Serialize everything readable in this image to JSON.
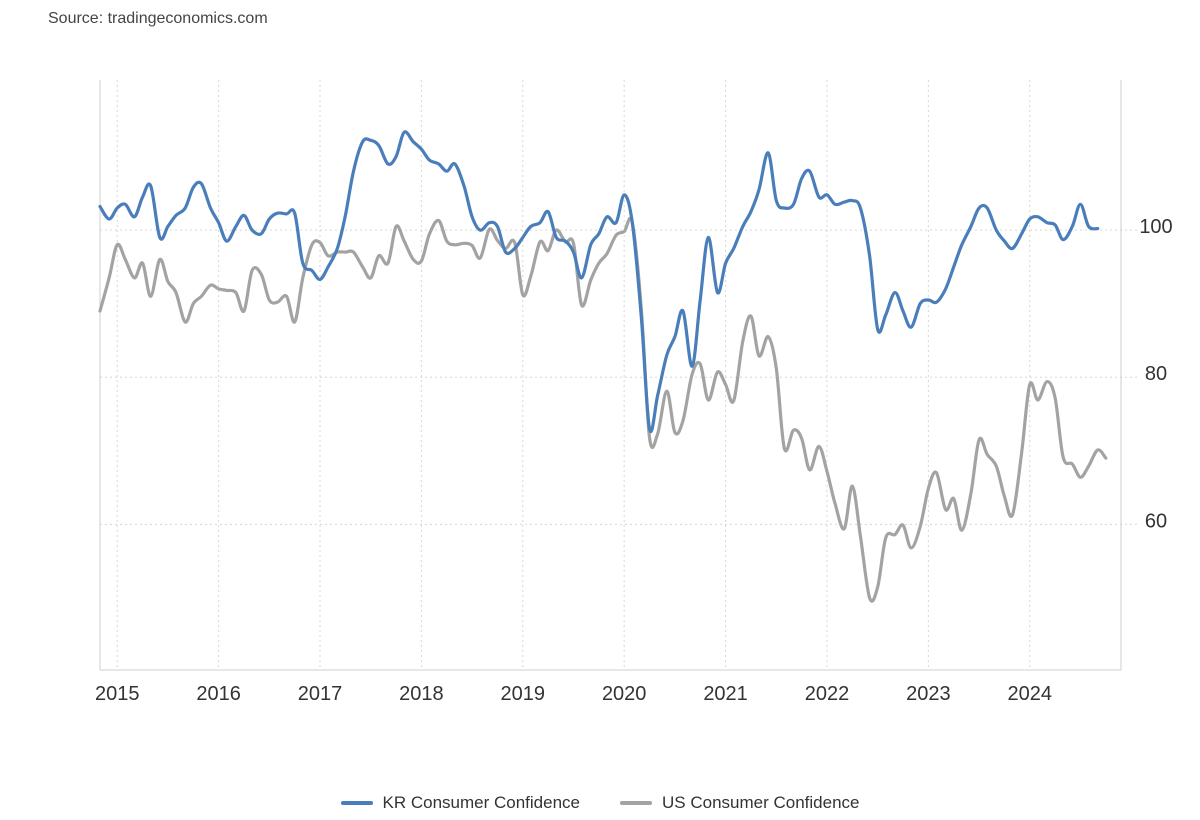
{
  "source_text": "Source: tradingeconomics.com",
  "chart_data": {
    "type": "line",
    "title": "",
    "xlabel": "",
    "ylabel": "",
    "x_ticks": [
      "2015",
      "2016",
      "2017",
      "2018",
      "2019",
      "2020",
      "2021",
      "2022",
      "2023",
      "2024"
    ],
    "y_ticks": [
      60,
      80,
      100
    ],
    "xlim": [
      2014.83,
      2024.9
    ],
    "ylim": [
      40.2,
      120.4
    ],
    "grid": true,
    "legend_position": "bottom-center",
    "series": [
      {
        "name": "KR Consumer Confidence",
        "color": "#4a7ebb",
        "points": [
          [
            2014.83,
            103.2
          ],
          [
            2014.92,
            101.5
          ],
          [
            2015.0,
            103.0
          ],
          [
            2015.08,
            103.5
          ],
          [
            2015.17,
            101.8
          ],
          [
            2015.25,
            104.5
          ],
          [
            2015.33,
            106.0
          ],
          [
            2015.42,
            99.0
          ],
          [
            2015.5,
            100.5
          ],
          [
            2015.58,
            102.0
          ],
          [
            2015.67,
            103.0
          ],
          [
            2015.75,
            105.8
          ],
          [
            2015.83,
            106.3
          ],
          [
            2015.92,
            103.0
          ],
          [
            2016.0,
            101.0
          ],
          [
            2016.08,
            98.5
          ],
          [
            2016.17,
            100.5
          ],
          [
            2016.25,
            102.0
          ],
          [
            2016.33,
            100.0
          ],
          [
            2016.42,
            99.5
          ],
          [
            2016.5,
            101.5
          ],
          [
            2016.58,
            102.3
          ],
          [
            2016.67,
            102.2
          ],
          [
            2016.75,
            102.3
          ],
          [
            2016.83,
            95.5
          ],
          [
            2016.92,
            94.5
          ],
          [
            2017.0,
            93.3
          ],
          [
            2017.08,
            95.0
          ],
          [
            2017.17,
            97.5
          ],
          [
            2017.25,
            102.0
          ],
          [
            2017.33,
            108.0
          ],
          [
            2017.42,
            112.0
          ],
          [
            2017.5,
            112.2
          ],
          [
            2017.58,
            111.5
          ],
          [
            2017.67,
            109.0
          ],
          [
            2017.75,
            110.0
          ],
          [
            2017.83,
            113.3
          ],
          [
            2017.92,
            112.0
          ],
          [
            2018.0,
            111.0
          ],
          [
            2018.08,
            109.5
          ],
          [
            2018.17,
            109.0
          ],
          [
            2018.25,
            108.0
          ],
          [
            2018.33,
            109.0
          ],
          [
            2018.42,
            106.0
          ],
          [
            2018.5,
            101.8
          ],
          [
            2018.58,
            100.0
          ],
          [
            2018.67,
            101.0
          ],
          [
            2018.75,
            100.5
          ],
          [
            2018.83,
            97.0
          ],
          [
            2018.92,
            97.5
          ],
          [
            2019.0,
            99.0
          ],
          [
            2019.08,
            100.5
          ],
          [
            2019.17,
            101.0
          ],
          [
            2019.25,
            102.5
          ],
          [
            2019.33,
            99.0
          ],
          [
            2019.42,
            98.5
          ],
          [
            2019.5,
            97.0
          ],
          [
            2019.58,
            93.5
          ],
          [
            2019.67,
            98.0
          ],
          [
            2019.75,
            99.5
          ],
          [
            2019.83,
            101.8
          ],
          [
            2019.92,
            101.0
          ],
          [
            2020.0,
            104.8
          ],
          [
            2020.08,
            101.0
          ],
          [
            2020.17,
            88.0
          ],
          [
            2020.25,
            73.0
          ],
          [
            2020.33,
            77.5
          ],
          [
            2020.42,
            83.0
          ],
          [
            2020.5,
            85.5
          ],
          [
            2020.58,
            89.0
          ],
          [
            2020.67,
            81.5
          ],
          [
            2020.75,
            90.5
          ],
          [
            2020.83,
            99.0
          ],
          [
            2020.92,
            91.5
          ],
          [
            2021.0,
            95.5
          ],
          [
            2021.08,
            97.5
          ],
          [
            2021.17,
            100.5
          ],
          [
            2021.25,
            102.5
          ],
          [
            2021.33,
            105.5
          ],
          [
            2021.42,
            110.5
          ],
          [
            2021.5,
            104.0
          ],
          [
            2021.58,
            103.0
          ],
          [
            2021.67,
            103.5
          ],
          [
            2021.75,
            107.0
          ],
          [
            2021.83,
            108.0
          ],
          [
            2021.92,
            104.5
          ],
          [
            2022.0,
            104.8
          ],
          [
            2022.08,
            103.5
          ],
          [
            2022.17,
            103.8
          ],
          [
            2022.25,
            104.0
          ],
          [
            2022.33,
            103.0
          ],
          [
            2022.42,
            96.5
          ],
          [
            2022.5,
            86.5
          ],
          [
            2022.58,
            88.5
          ],
          [
            2022.67,
            91.5
          ],
          [
            2022.75,
            89.0
          ],
          [
            2022.83,
            86.8
          ],
          [
            2022.92,
            90.0
          ],
          [
            2023.0,
            90.5
          ],
          [
            2023.08,
            90.2
          ],
          [
            2023.17,
            92.0
          ],
          [
            2023.25,
            95.0
          ],
          [
            2023.33,
            98.0
          ],
          [
            2023.42,
            100.5
          ],
          [
            2023.5,
            103.0
          ],
          [
            2023.58,
            103.0
          ],
          [
            2023.67,
            100.0
          ],
          [
            2023.75,
            98.5
          ],
          [
            2023.83,
            97.5
          ],
          [
            2023.92,
            99.5
          ],
          [
            2024.0,
            101.5
          ],
          [
            2024.08,
            101.8
          ],
          [
            2024.17,
            101.0
          ],
          [
            2024.25,
            100.7
          ],
          [
            2024.33,
            98.7
          ],
          [
            2024.42,
            100.5
          ],
          [
            2024.5,
            103.5
          ],
          [
            2024.58,
            100.5
          ],
          [
            2024.67,
            100.2
          ]
        ]
      },
      {
        "name": "US Consumer Confidence",
        "color": "#a3a3a3",
        "points": [
          [
            2014.83,
            89.0
          ],
          [
            2014.92,
            93.5
          ],
          [
            2015.0,
            98.0
          ],
          [
            2015.08,
            96.0
          ],
          [
            2015.17,
            93.5
          ],
          [
            2015.25,
            95.5
          ],
          [
            2015.33,
            91.0
          ],
          [
            2015.42,
            96.0
          ],
          [
            2015.5,
            93.0
          ],
          [
            2015.58,
            91.5
          ],
          [
            2015.67,
            87.5
          ],
          [
            2015.75,
            90.0
          ],
          [
            2015.83,
            91.0
          ],
          [
            2015.92,
            92.5
          ],
          [
            2016.0,
            92.0
          ],
          [
            2016.08,
            91.8
          ],
          [
            2016.17,
            91.5
          ],
          [
            2016.25,
            89.0
          ],
          [
            2016.33,
            94.5
          ],
          [
            2016.42,
            94.0
          ],
          [
            2016.5,
            90.5
          ],
          [
            2016.58,
            90.2
          ],
          [
            2016.67,
            91.0
          ],
          [
            2016.75,
            87.5
          ],
          [
            2016.83,
            93.5
          ],
          [
            2016.92,
            98.0
          ],
          [
            2017.0,
            98.3
          ],
          [
            2017.08,
            96.5
          ],
          [
            2017.17,
            97.0
          ],
          [
            2017.25,
            97.0
          ],
          [
            2017.33,
            97.0
          ],
          [
            2017.42,
            95.0
          ],
          [
            2017.5,
            93.5
          ],
          [
            2017.58,
            96.5
          ],
          [
            2017.67,
            95.5
          ],
          [
            2017.75,
            100.5
          ],
          [
            2017.83,
            98.5
          ],
          [
            2017.92,
            96.0
          ],
          [
            2018.0,
            95.8
          ],
          [
            2018.08,
            99.5
          ],
          [
            2018.17,
            101.3
          ],
          [
            2018.25,
            98.5
          ],
          [
            2018.33,
            98.0
          ],
          [
            2018.42,
            98.2
          ],
          [
            2018.5,
            97.9
          ],
          [
            2018.58,
            96.2
          ],
          [
            2018.67,
            100.1
          ],
          [
            2018.75,
            98.6
          ],
          [
            2018.83,
            97.5
          ],
          [
            2018.92,
            98.3
          ],
          [
            2019.0,
            91.2
          ],
          [
            2019.08,
            93.8
          ],
          [
            2019.17,
            98.4
          ],
          [
            2019.25,
            97.2
          ],
          [
            2019.33,
            100.0
          ],
          [
            2019.42,
            98.4
          ],
          [
            2019.5,
            98.2
          ],
          [
            2019.58,
            89.8
          ],
          [
            2019.67,
            93.2
          ],
          [
            2019.75,
            95.5
          ],
          [
            2019.83,
            96.8
          ],
          [
            2019.92,
            99.3
          ],
          [
            2020.0,
            99.8
          ],
          [
            2020.08,
            101.0
          ],
          [
            2020.17,
            89.1
          ],
          [
            2020.25,
            71.8
          ],
          [
            2020.33,
            72.3
          ],
          [
            2020.42,
            78.1
          ],
          [
            2020.5,
            72.5
          ],
          [
            2020.58,
            74.1
          ],
          [
            2020.67,
            80.4
          ],
          [
            2020.75,
            81.8
          ],
          [
            2020.83,
            76.9
          ],
          [
            2020.92,
            80.7
          ],
          [
            2021.0,
            79.0
          ],
          [
            2021.08,
            76.8
          ],
          [
            2021.17,
            84.9
          ],
          [
            2021.25,
            88.3
          ],
          [
            2021.33,
            82.9
          ],
          [
            2021.42,
            85.5
          ],
          [
            2021.5,
            81.2
          ],
          [
            2021.58,
            70.3
          ],
          [
            2021.67,
            72.8
          ],
          [
            2021.75,
            71.7
          ],
          [
            2021.83,
            67.4
          ],
          [
            2021.92,
            70.6
          ],
          [
            2022.0,
            67.2
          ],
          [
            2022.08,
            62.8
          ],
          [
            2022.17,
            59.4
          ],
          [
            2022.25,
            65.2
          ],
          [
            2022.33,
            58.4
          ],
          [
            2022.42,
            50.0
          ],
          [
            2022.5,
            51.5
          ],
          [
            2022.58,
            58.2
          ],
          [
            2022.67,
            58.6
          ],
          [
            2022.75,
            59.9
          ],
          [
            2022.83,
            56.8
          ],
          [
            2022.92,
            59.7
          ],
          [
            2023.0,
            64.9
          ],
          [
            2023.08,
            67.0
          ],
          [
            2023.17,
            62.0
          ],
          [
            2023.25,
            63.5
          ],
          [
            2023.33,
            59.2
          ],
          [
            2023.42,
            64.2
          ],
          [
            2023.5,
            71.5
          ],
          [
            2023.58,
            69.5
          ],
          [
            2023.67,
            67.9
          ],
          [
            2023.75,
            63.8
          ],
          [
            2023.83,
            61.3
          ],
          [
            2023.92,
            69.7
          ],
          [
            2024.0,
            79.0
          ],
          [
            2024.08,
            76.9
          ],
          [
            2024.17,
            79.4
          ],
          [
            2024.25,
            77.2
          ],
          [
            2024.33,
            69.1
          ],
          [
            2024.42,
            68.2
          ],
          [
            2024.5,
            66.4
          ],
          [
            2024.58,
            67.9
          ],
          [
            2024.67,
            70.1
          ],
          [
            2024.75,
            69.0
          ]
        ]
      }
    ]
  }
}
